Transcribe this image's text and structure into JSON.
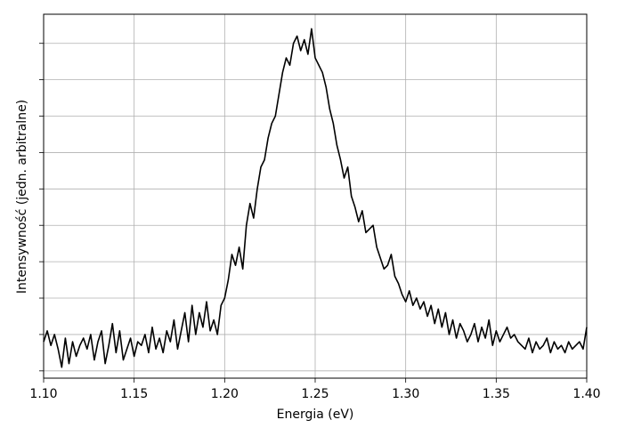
{
  "chart_data": {
    "type": "line",
    "xlabel": "Energia (eV)",
    "ylabel": "Intensywność (jedn. arbitralne)",
    "xlim": [
      1.1,
      1.4
    ],
    "ylim": [
      0,
      1.0
    ],
    "grid": true,
    "x_ticks": [
      1.1,
      1.15,
      1.2,
      1.25,
      1.3,
      1.35,
      1.4
    ],
    "x_tick_labels": [
      "1.10",
      "1.15",
      "1.20",
      "1.25",
      "1.30",
      "1.35",
      "1.40"
    ],
    "y_ticks": [
      0.02,
      0.12,
      0.22,
      0.32,
      0.42,
      0.52,
      0.62,
      0.72,
      0.82,
      0.92
    ],
    "series": [
      {
        "color": "#000000",
        "x": [
          1.1,
          1.102,
          1.104,
          1.106,
          1.108,
          1.11,
          1.112,
          1.114,
          1.116,
          1.118,
          1.12,
          1.122,
          1.124,
          1.126,
          1.128,
          1.13,
          1.132,
          1.134,
          1.136,
          1.138,
          1.14,
          1.142,
          1.144,
          1.146,
          1.148,
          1.15,
          1.152,
          1.154,
          1.156,
          1.158,
          1.16,
          1.162,
          1.164,
          1.166,
          1.168,
          1.17,
          1.172,
          1.174,
          1.176,
          1.178,
          1.18,
          1.182,
          1.184,
          1.186,
          1.188,
          1.19,
          1.192,
          1.194,
          1.196,
          1.198,
          1.2,
          1.202,
          1.204,
          1.206,
          1.208,
          1.21,
          1.212,
          1.214,
          1.216,
          1.218,
          1.22,
          1.222,
          1.224,
          1.226,
          1.228,
          1.23,
          1.232,
          1.234,
          1.236,
          1.238,
          1.24,
          1.242,
          1.244,
          1.246,
          1.248,
          1.25,
          1.252,
          1.254,
          1.256,
          1.258,
          1.26,
          1.262,
          1.264,
          1.266,
          1.268,
          1.27,
          1.272,
          1.274,
          1.276,
          1.278,
          1.28,
          1.282,
          1.284,
          1.286,
          1.288,
          1.29,
          1.292,
          1.294,
          1.296,
          1.298,
          1.3,
          1.302,
          1.304,
          1.306,
          1.308,
          1.31,
          1.312,
          1.314,
          1.316,
          1.318,
          1.32,
          1.322,
          1.324,
          1.326,
          1.328,
          1.33,
          1.332,
          1.334,
          1.336,
          1.338,
          1.34,
          1.342,
          1.344,
          1.346,
          1.348,
          1.35,
          1.352,
          1.354,
          1.356,
          1.358,
          1.36,
          1.362,
          1.364,
          1.366,
          1.368,
          1.37,
          1.372,
          1.374,
          1.376,
          1.378,
          1.38,
          1.382,
          1.384,
          1.386,
          1.388,
          1.39,
          1.392,
          1.394,
          1.396,
          1.398,
          1.4
        ],
        "y": [
          0.1,
          0.13,
          0.09,
          0.12,
          0.08,
          0.03,
          0.11,
          0.04,
          0.1,
          0.06,
          0.09,
          0.11,
          0.08,
          0.12,
          0.05,
          0.1,
          0.13,
          0.04,
          0.09,
          0.15,
          0.07,
          0.13,
          0.05,
          0.08,
          0.11,
          0.06,
          0.1,
          0.09,
          0.12,
          0.07,
          0.14,
          0.08,
          0.11,
          0.07,
          0.13,
          0.1,
          0.16,
          0.08,
          0.13,
          0.18,
          0.1,
          0.2,
          0.12,
          0.18,
          0.14,
          0.21,
          0.13,
          0.16,
          0.12,
          0.2,
          0.22,
          0.27,
          0.34,
          0.31,
          0.36,
          0.3,
          0.42,
          0.48,
          0.44,
          0.52,
          0.58,
          0.6,
          0.66,
          0.7,
          0.72,
          0.78,
          0.84,
          0.88,
          0.86,
          0.92,
          0.94,
          0.9,
          0.93,
          0.89,
          0.96,
          0.88,
          0.86,
          0.84,
          0.8,
          0.74,
          0.7,
          0.64,
          0.6,
          0.55,
          0.58,
          0.5,
          0.47,
          0.43,
          0.46,
          0.4,
          0.41,
          0.42,
          0.36,
          0.33,
          0.3,
          0.31,
          0.34,
          0.28,
          0.26,
          0.23,
          0.21,
          0.24,
          0.2,
          0.22,
          0.19,
          0.21,
          0.17,
          0.2,
          0.15,
          0.19,
          0.14,
          0.18,
          0.12,
          0.16,
          0.11,
          0.15,
          0.13,
          0.1,
          0.12,
          0.15,
          0.1,
          0.14,
          0.11,
          0.16,
          0.09,
          0.13,
          0.1,
          0.12,
          0.14,
          0.11,
          0.12,
          0.1,
          0.09,
          0.08,
          0.11,
          0.07,
          0.1,
          0.08,
          0.09,
          0.11,
          0.07,
          0.1,
          0.08,
          0.09,
          0.07,
          0.1,
          0.08,
          0.09,
          0.1,
          0.08,
          0.14
        ]
      }
    ]
  }
}
